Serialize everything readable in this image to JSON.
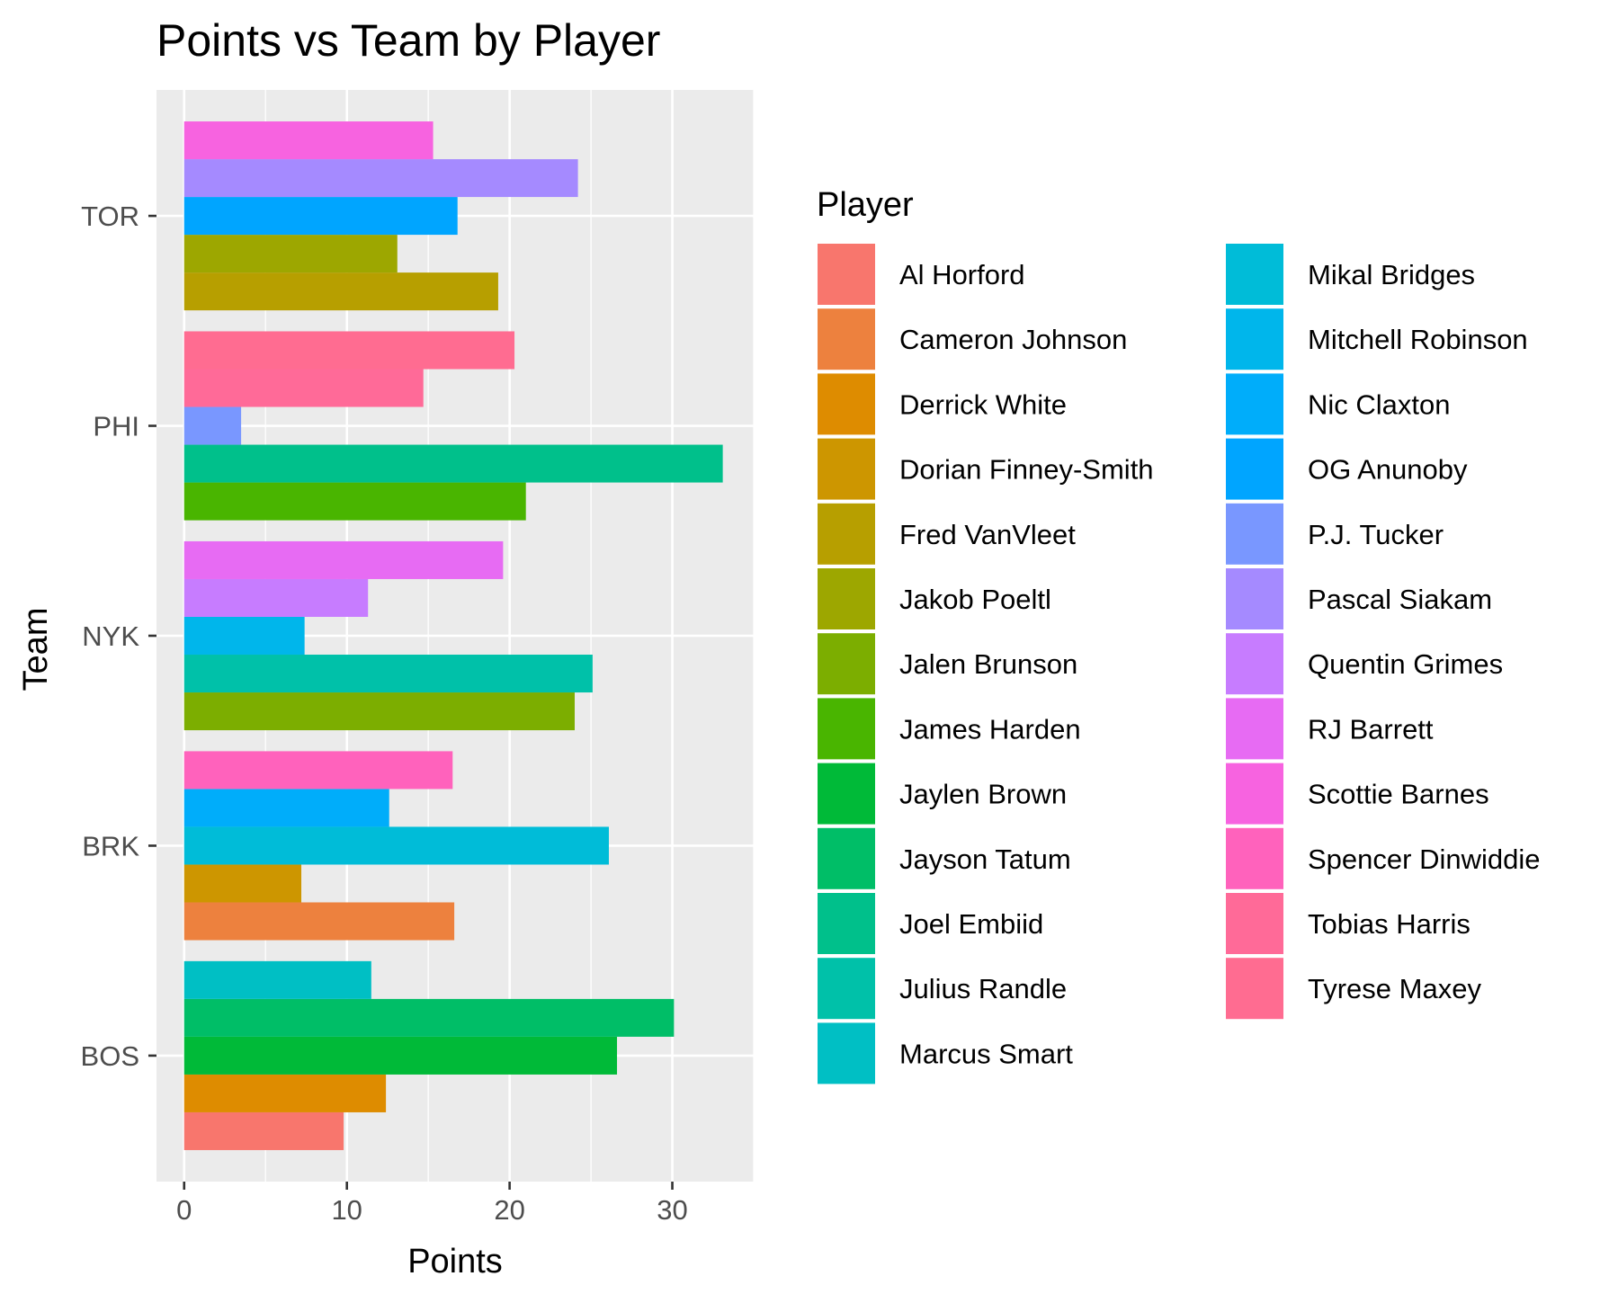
{
  "chart_data": {
    "type": "bar",
    "orientation": "horizontal",
    "title": "Points vs Team by Player",
    "xlabel": "Points",
    "ylabel": "Team",
    "xlim": [
      -1.7,
      35
    ],
    "xticks": [
      0,
      10,
      20,
      30
    ],
    "grid": true,
    "legend": {
      "title": "Player",
      "placement": "right",
      "columns": 2
    },
    "categories": [
      "BOS",
      "BRK",
      "NYK",
      "PHI",
      "TOR"
    ],
    "players": [
      {
        "name": "Al Horford",
        "color": "#F8766D"
      },
      {
        "name": "Cameron Johnson",
        "color": "#EC8239"
      },
      {
        "name": "Derrick White",
        "color": "#DB8E00"
      },
      {
        "name": "Dorian Finney-Smith",
        "color": "#C79800"
      },
      {
        "name": "Fred VanVleet",
        "color": "#AEA200"
      },
      {
        "name": "Jakob Poeltl",
        "color": "#8FAA00"
      },
      {
        "name": "Jalen Brunson",
        "color": "#64B200"
      },
      {
        "name": "James Harden",
        "color": "#00B81B"
      },
      {
        "name": "Jaylen Brown",
        "color": "#00BD5C"
      },
      {
        "name": "Jayson Tatum",
        "color": "#00C086"
      },
      {
        "name": "Joel Embiid",
        "color": "#00C1A7"
      },
      {
        "name": "Julius Randle",
        "color": "#00BFC4"
      },
      {
        "name": "Marcus Smart",
        "color": "#00BADE"
      },
      {
        "name": "Mikal Bridges",
        "color": "#00B1F4"
      },
      {
        "name": "Mitchell Robinson",
        "color": "#00A6FF"
      },
      {
        "name": "Nic Claxton",
        "color": "#7F96FF"
      },
      {
        "name": "OG Anunoby",
        "color": "#B385FF"
      },
      {
        "name": "P.J. Tucker",
        "color": "#D874FD"
      },
      {
        "name": "Pascal Siakam",
        "color": "#EF67EB"
      },
      {
        "name": "Quentin Grimes",
        "color": "#FD61D3"
      },
      {
        "name": "RJ Barrett",
        "color": "#FF63B6"
      },
      {
        "name": "Scottie Barnes",
        "color": "#FF6B94"
      },
      {
        "name": "Spencer Dinwiddie",
        "color": "#F8766D"
      },
      {
        "name": "Tobias Harris",
        "color": "#F8766D"
      },
      {
        "name": "Tyrese Maxey",
        "color": "#F8766D"
      }
    ],
    "legend_entries": [
      {
        "name": "Al Horford",
        "color": "#F8766D"
      },
      {
        "name": "Cameron Johnson",
        "color": "#ED813E"
      },
      {
        "name": "Derrick White",
        "color": "#DE8C00"
      },
      {
        "name": "Dorian Finney-Smith",
        "color": "#CD9600"
      },
      {
        "name": "Fred VanVleet",
        "color": "#B79F00"
      },
      {
        "name": "Jakob Poeltl",
        "color": "#9DA700"
      },
      {
        "name": "Jalen Brunson",
        "color": "#7CAE00"
      },
      {
        "name": "James Harden",
        "color": "#49B500"
      },
      {
        "name": "Jaylen Brown",
        "color": "#00BA38"
      },
      {
        "name": "Jayson Tatum",
        "color": "#00BE67"
      },
      {
        "name": "Joel Embiid",
        "color": "#00C08B"
      },
      {
        "name": "Julius Randle",
        "color": "#00C1A9"
      },
      {
        "name": "Marcus Smart",
        "color": "#00BFC4"
      },
      {
        "name": "Mikal Bridges",
        "color": "#00BCD8"
      },
      {
        "name": "Mitchell Robinson",
        "color": "#00B6EB"
      },
      {
        "name": "Nic Claxton",
        "color": "#00ADFA"
      },
      {
        "name": "OG Anunoby",
        "color": "#00A5FF"
      },
      {
        "name": "P.J. Tucker",
        "color": "#7997FF"
      },
      {
        "name": "Pascal Siakam",
        "color": "#A58AFF"
      },
      {
        "name": "Quentin Grimes",
        "color": "#C77CFF"
      },
      {
        "name": "RJ Barrett",
        "color": "#E76BF3"
      },
      {
        "name": "Scottie Barnes",
        "color": "#F763E0"
      },
      {
        "name": "Spencer Dinwiddie",
        "color": "#FF62BC"
      },
      {
        "name": "Tobias Harris",
        "color": "#FF6A98"
      },
      {
        "name": "Tyrese Maxey",
        "color": "#FF6C91"
      }
    ],
    "groups": [
      {
        "team": "BOS",
        "bars": [
          {
            "player": "Al Horford",
            "value": 9.8
          },
          {
            "player": "Derrick White",
            "value": 12.4
          },
          {
            "player": "Jaylen Brown",
            "value": 26.6
          },
          {
            "player": "Jayson Tatum",
            "value": 30.1
          },
          {
            "player": "Marcus Smart",
            "value": 11.5
          }
        ]
      },
      {
        "team": "BRK",
        "bars": [
          {
            "player": "Cameron Johnson",
            "value": 16.6
          },
          {
            "player": "Dorian Finney-Smith",
            "value": 7.2
          },
          {
            "player": "Mikal Bridges",
            "value": 26.1
          },
          {
            "player": "Nic Claxton",
            "value": 12.6
          },
          {
            "player": "Spencer Dinwiddie",
            "value": 16.5
          }
        ]
      },
      {
        "team": "NYK",
        "bars": [
          {
            "player": "Jalen Brunson",
            "value": 24.0
          },
          {
            "player": "Julius Randle",
            "value": 25.1
          },
          {
            "player": "Mitchell Robinson",
            "value": 7.4
          },
          {
            "player": "Quentin Grimes",
            "value": 11.3
          },
          {
            "player": "RJ Barrett",
            "value": 19.6
          }
        ]
      },
      {
        "team": "PHI",
        "bars": [
          {
            "player": "James Harden",
            "value": 21.0
          },
          {
            "player": "Joel Embiid",
            "value": 33.1
          },
          {
            "player": "P.J. Tucker",
            "value": 3.5
          },
          {
            "player": "Tobias Harris",
            "value": 14.7
          },
          {
            "player": "Tyrese Maxey",
            "value": 20.3
          }
        ]
      },
      {
        "team": "TOR",
        "bars": [
          {
            "player": "Fred VanVleet",
            "value": 19.3
          },
          {
            "player": "Jakob Poeltl",
            "value": 13.1
          },
          {
            "player": "OG Anunoby",
            "value": 16.8
          },
          {
            "player": "Pascal Siakam",
            "value": 24.2
          },
          {
            "player": "Scottie Barnes",
            "value": 15.3
          }
        ]
      }
    ]
  }
}
